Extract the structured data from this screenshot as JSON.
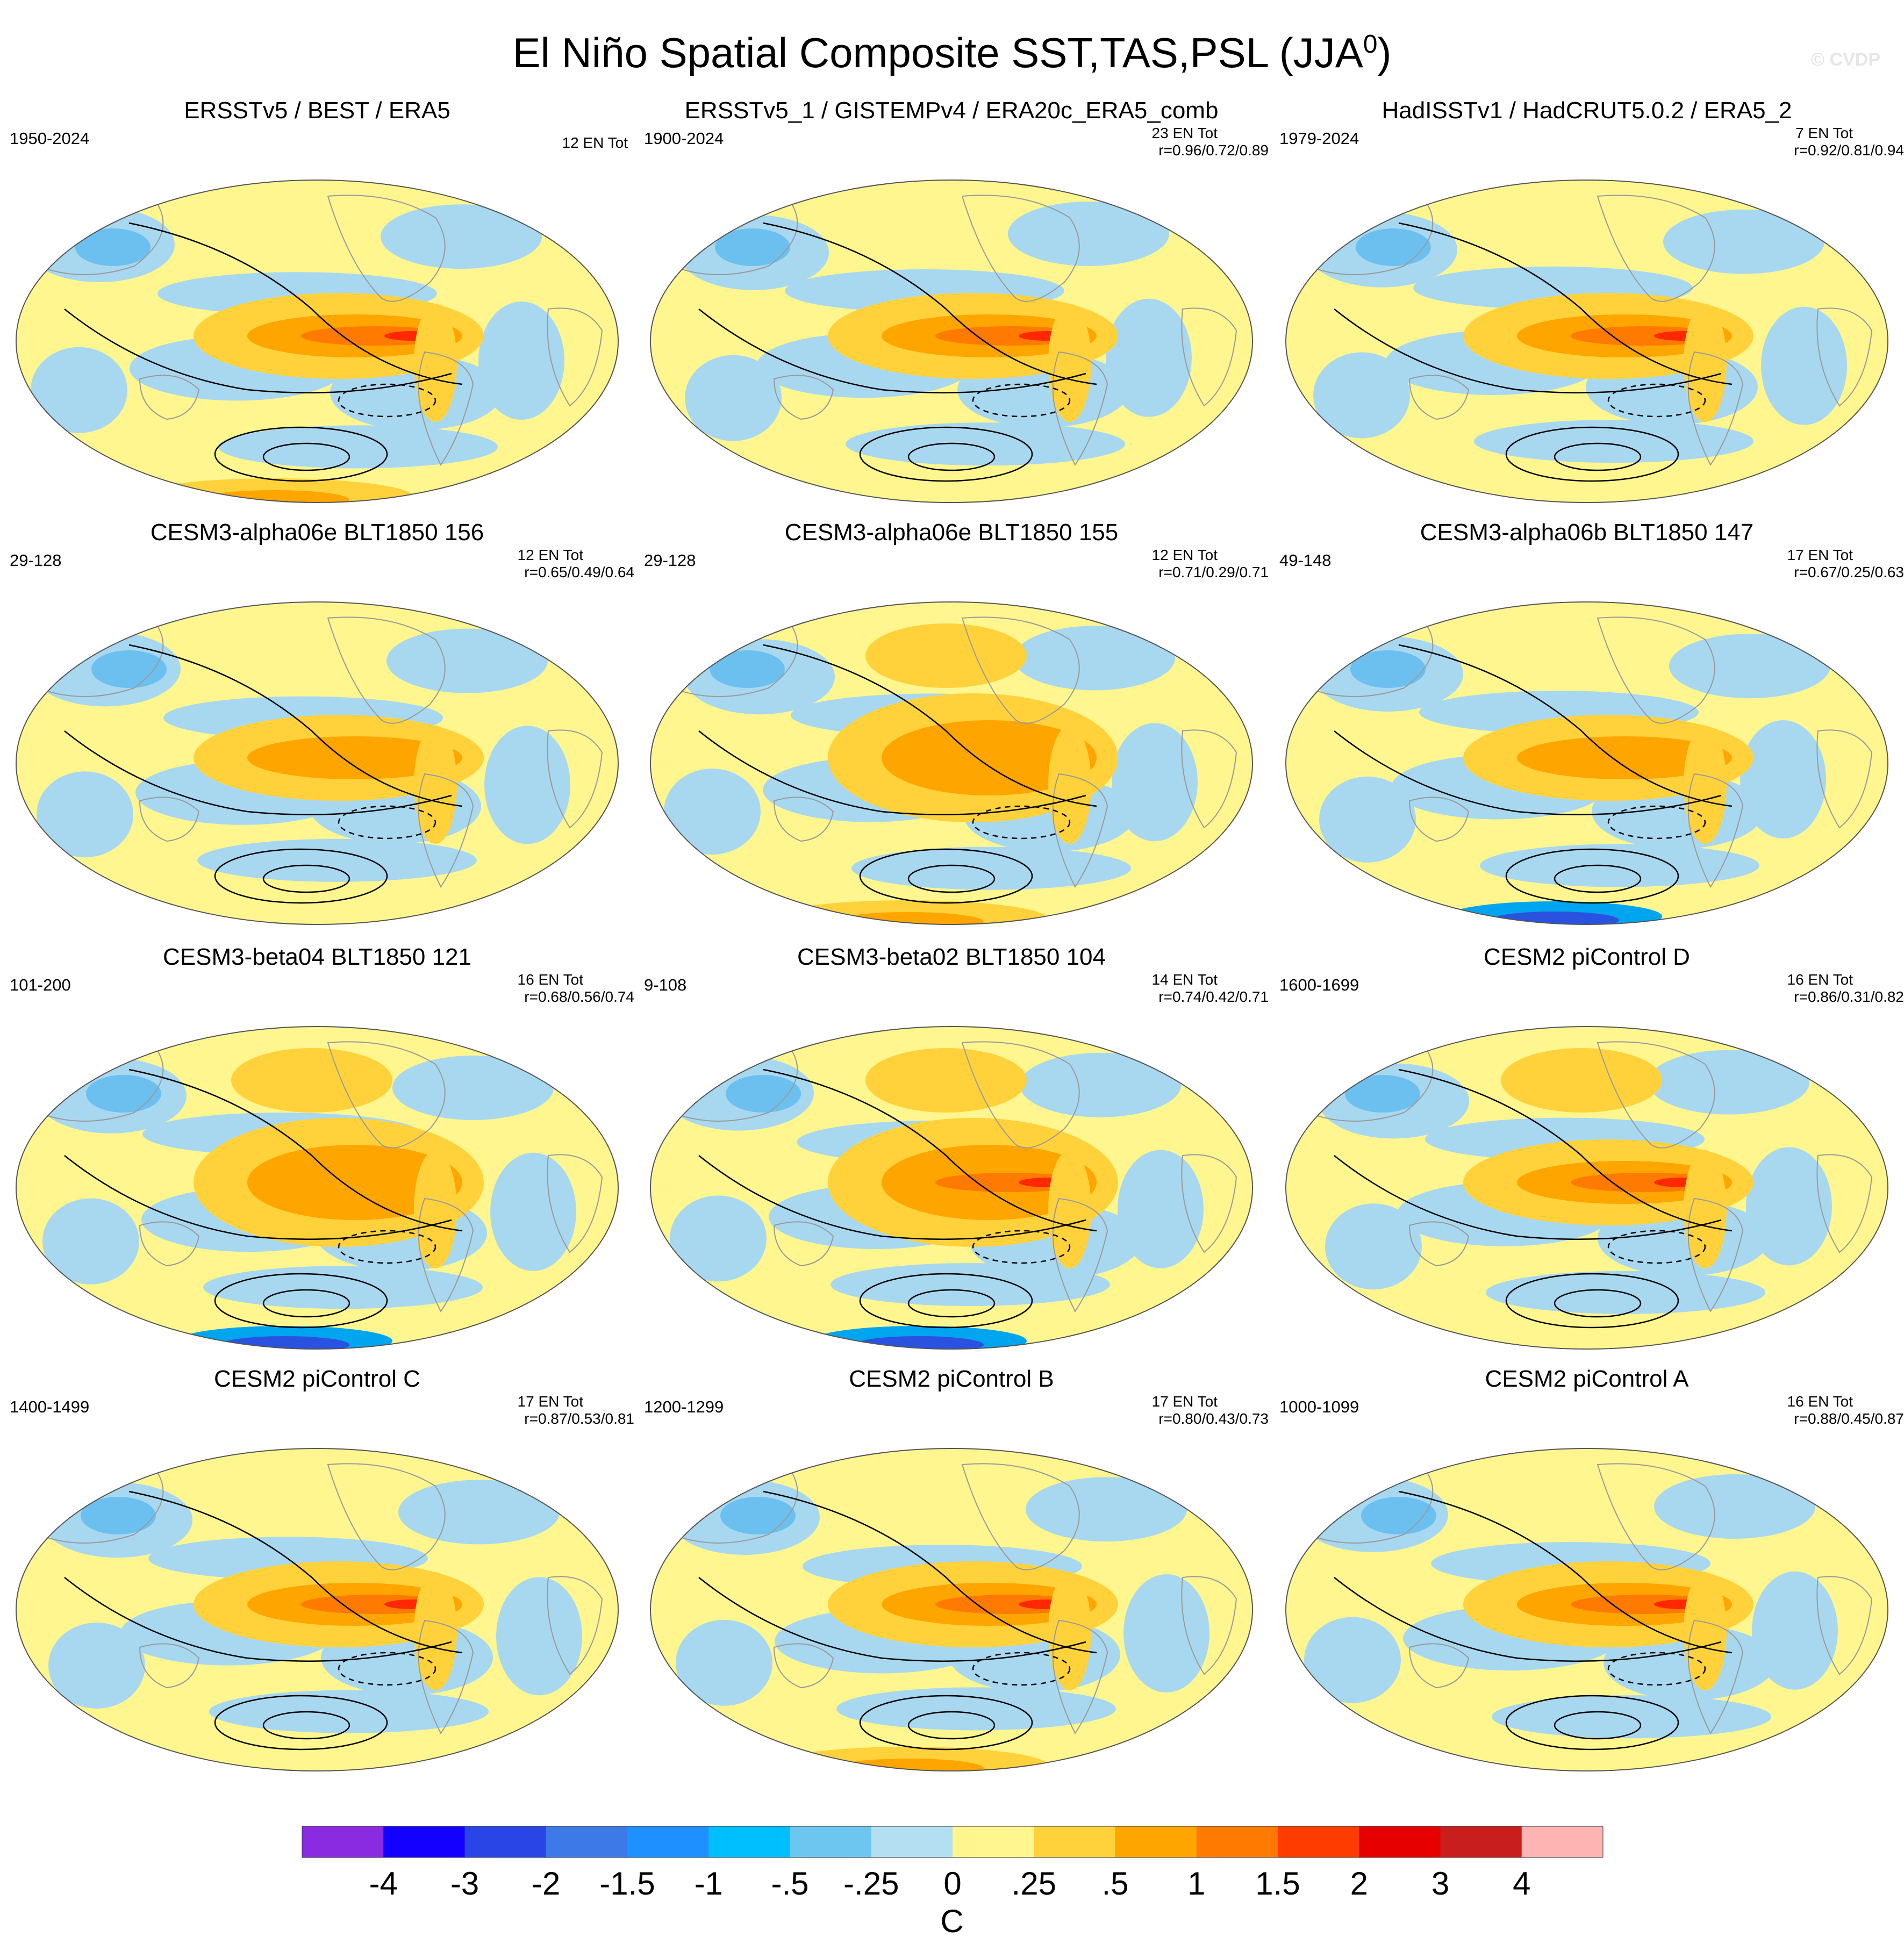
{
  "title": "El Niño Spatial Composite SST,TAS,PSL (JJA",
  "title_superscript": "0",
  "title_close": ")",
  "watermark": "© CVDP",
  "colors": {
    "ocean_base": "#fff68f",
    "cool_light": "#a8d8f0",
    "cool_mid": "#6cc0f0",
    "cool_deep": "#00a5f0",
    "cool_deepest": "#2a52e0",
    "warm_light": "#ffd23c",
    "warm_mid": "#ffa500",
    "warm_strong": "#ff7a00",
    "warm_extreme": "#ff2800",
    "land": "#ffffff",
    "contour": "#000000"
  },
  "panels": [
    {
      "title": "ERSSTv5 / BEST / ERA5",
      "years": "1950-2024",
      "count": "12 EN Tot",
      "r": ""
    },
    {
      "title": "ERSSTv5_1 / GISTEMPv4 / ERA20c_ERA5_comb",
      "years": "1900-2024",
      "count": "23 EN Tot",
      "r": "r=0.96/0.72/0.89"
    },
    {
      "title": "HadISSTv1 / HadCRUT5.0.2 / ERA5_2",
      "years": "1979-2024",
      "count": "7 EN Tot",
      "r": "r=0.92/0.81/0.94"
    },
    {
      "title": "CESM3-alpha06e BLT1850 156",
      "years": "29-128",
      "count": "12 EN Tot",
      "r": "r=0.65/0.49/0.64"
    },
    {
      "title": "CESM3-alpha06e BLT1850 155",
      "years": "29-128",
      "count": "12 EN Tot",
      "r": "r=0.71/0.29/0.71"
    },
    {
      "title": "CESM3-alpha06b BLT1850 147",
      "years": "49-148",
      "count": "17 EN Tot",
      "r": "r=0.67/0.25/0.63"
    },
    {
      "title": "CESM3-beta04 BLT1850 121",
      "years": "101-200",
      "count": "16 EN Tot",
      "r": "r=0.68/0.56/0.74"
    },
    {
      "title": "CESM3-beta02 BLT1850 104",
      "years": "9-108",
      "count": "14 EN Tot",
      "r": "r=0.74/0.42/0.71"
    },
    {
      "title": "CESM2 piControl D",
      "years": "1600-1699",
      "count": "16 EN Tot",
      "r": "r=0.86/0.31/0.82"
    },
    {
      "title": "CESM2 piControl C",
      "years": "1400-1499",
      "count": "17 EN Tot",
      "r": "r=0.87/0.53/0.81"
    },
    {
      "title": "CESM2 piControl B",
      "years": "1200-1299",
      "count": "17 EN Tot",
      "r": "r=0.80/0.43/0.73"
    },
    {
      "title": "CESM2 piControl A",
      "years": "1000-1099",
      "count": "16 EN Tot",
      "r": "r=0.88/0.45/0.87"
    }
  ],
  "chart_data": {
    "type": "heatmap",
    "title": "El Niño Spatial Composite SST,TAS,PSL (JJA0)",
    "projection": "robinson",
    "variables": [
      "SST",
      "TAS",
      "PSL"
    ],
    "units": "C",
    "colorbar": {
      "labels": [
        "-4",
        "-3",
        "-2",
        "-1.5",
        "-1",
        "-.5",
        "-.25",
        "0",
        ".25",
        ".5",
        "1",
        "1.5",
        "2",
        "3",
        "4"
      ],
      "colors": [
        "#8a2be2",
        "#1400ff",
        "#2a45e6",
        "#3d7ae8",
        "#1e90ff",
        "#00bfff",
        "#6cc6f0",
        "#b4def2",
        "#fff68f",
        "#ffd23c",
        "#ffa500",
        "#ff7a00",
        "#ff3c00",
        "#e60000",
        "#c81e1e",
        "#ffb4b4"
      ]
    }
  }
}
